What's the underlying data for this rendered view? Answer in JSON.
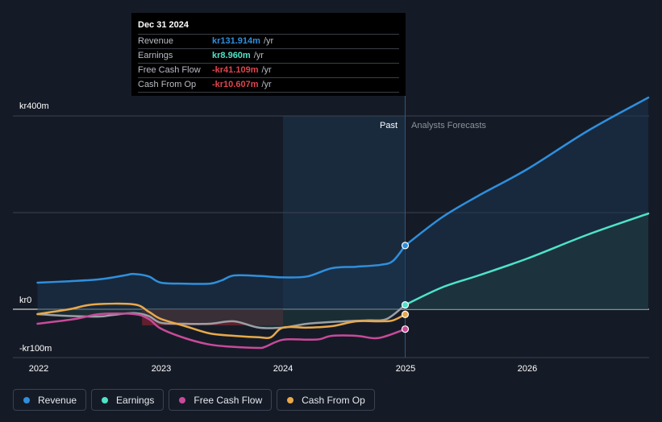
{
  "chart_data": {
    "type": "line",
    "y_unit_prefix": "kr",
    "ylim": [
      -100,
      400
    ],
    "xlim": [
      2021.8,
      2026.99
    ],
    "y_axis_labels": [
      {
        "value": 400,
        "label": "kr400m"
      },
      {
        "value": 0,
        "label": "kr0"
      },
      {
        "value": -100,
        "label": "-kr100m"
      }
    ],
    "x_tick_labels": [
      {
        "value": 2022,
        "label": "2022"
      },
      {
        "value": 2023,
        "label": "2023"
      },
      {
        "value": 2024,
        "label": "2024"
      },
      {
        "value": 2025,
        "label": "2025"
      },
      {
        "value": 2026,
        "label": "2026"
      }
    ],
    "gridlines_y": [
      400,
      200,
      0,
      -100
    ],
    "highlight_range": [
      2024,
      2025
    ],
    "divider_x": 2025,
    "past_label": "Past",
    "forecast_label": "Analysts Forecasts",
    "series": [
      {
        "name": "Revenue",
        "color": "#2f8fdd",
        "points": [
          [
            2021.99,
            55
          ],
          [
            2022.25,
            58
          ],
          [
            2022.5,
            62
          ],
          [
            2022.7,
            70
          ],
          [
            2022.78,
            73
          ],
          [
            2022.9,
            68
          ],
          [
            2023.0,
            55
          ],
          [
            2023.2,
            53
          ],
          [
            2023.4,
            53
          ],
          [
            2023.5,
            60
          ],
          [
            2023.6,
            70
          ],
          [
            2023.8,
            69
          ],
          [
            2024.0,
            66
          ],
          [
            2024.2,
            68
          ],
          [
            2024.4,
            85
          ],
          [
            2024.6,
            88
          ],
          [
            2024.8,
            92
          ],
          [
            2024.9,
            100
          ],
          [
            2025.0,
            131.914
          ],
          [
            2025.3,
            190
          ],
          [
            2025.6,
            235
          ],
          [
            2026.0,
            290
          ],
          [
            2026.5,
            370
          ],
          [
            2026.99,
            438
          ]
        ],
        "highlight": {
          "x": 2025.0,
          "y": 131.914
        },
        "forecast_from": 2025.0
      },
      {
        "name": "Earnings",
        "color": "#4fe3c9",
        "points": [
          [
            2021.99,
            -10
          ],
          [
            2022.25,
            -14
          ],
          [
            2022.5,
            -15
          ],
          [
            2022.6,
            -12
          ],
          [
            2022.78,
            -8
          ],
          [
            2022.9,
            -14
          ],
          [
            2023.0,
            -28
          ],
          [
            2023.2,
            -30
          ],
          [
            2023.4,
            -30
          ],
          [
            2023.6,
            -25
          ],
          [
            2023.8,
            -38
          ],
          [
            2024.0,
            -38
          ],
          [
            2024.2,
            -30
          ],
          [
            2024.5,
            -25
          ],
          [
            2024.7,
            -23
          ],
          [
            2024.85,
            -20
          ],
          [
            2025.0,
            8.96
          ],
          [
            2025.3,
            45
          ],
          [
            2025.6,
            70
          ],
          [
            2026.0,
            105
          ],
          [
            2026.5,
            155
          ],
          [
            2026.99,
            198
          ]
        ],
        "highlight": {
          "x": 2025.0,
          "y": 8.96
        },
        "forecast_from": 2025.0
      },
      {
        "name": "Free Cash Flow",
        "color": "#c94a9a",
        "points": [
          [
            2021.99,
            -30
          ],
          [
            2022.3,
            -20
          ],
          [
            2022.5,
            -10
          ],
          [
            2022.78,
            -10
          ],
          [
            2022.9,
            -20
          ],
          [
            2023.0,
            -40
          ],
          [
            2023.2,
            -60
          ],
          [
            2023.4,
            -73
          ],
          [
            2023.6,
            -78
          ],
          [
            2023.8,
            -80
          ],
          [
            2023.85,
            -78
          ],
          [
            2024.0,
            -63
          ],
          [
            2024.2,
            -63
          ],
          [
            2024.3,
            -62
          ],
          [
            2024.4,
            -55
          ],
          [
            2024.6,
            -55
          ],
          [
            2024.75,
            -60
          ],
          [
            2024.85,
            -55
          ],
          [
            2025.0,
            -41.109
          ]
        ],
        "highlight": {
          "x": 2025.0,
          "y": -41.109
        },
        "forecast_from": null
      },
      {
        "name": "Cash From Op",
        "color": "#e9a94a",
        "points": [
          [
            2021.99,
            -10
          ],
          [
            2022.25,
            0
          ],
          [
            2022.45,
            10
          ],
          [
            2022.78,
            10
          ],
          [
            2022.9,
            -5
          ],
          [
            2023.0,
            -20
          ],
          [
            2023.2,
            -35
          ],
          [
            2023.4,
            -50
          ],
          [
            2023.6,
            -55
          ],
          [
            2023.8,
            -58
          ],
          [
            2023.9,
            -58
          ],
          [
            2024.0,
            -38
          ],
          [
            2024.2,
            -38
          ],
          [
            2024.4,
            -35
          ],
          [
            2024.6,
            -25
          ],
          [
            2024.8,
            -25
          ],
          [
            2024.9,
            -23
          ],
          [
            2025.0,
            -10.607
          ]
        ],
        "highlight": {
          "x": 2025.0,
          "y": -10.607
        },
        "forecast_from": null
      }
    ]
  },
  "tooltip": {
    "date": "Dec 31 2024",
    "rows": [
      {
        "label": "Revenue",
        "value": "kr131.914m",
        "unit": "/yr",
        "color": "#2f8fdd"
      },
      {
        "label": "Earnings",
        "value": "kr8.960m",
        "unit": "/yr",
        "color": "#4fe3c9"
      },
      {
        "label": "Free Cash Flow",
        "value": "-kr41.109m",
        "unit": "/yr",
        "color": "#e0454e"
      },
      {
        "label": "Cash From Op",
        "value": "-kr10.607m",
        "unit": "/yr",
        "color": "#e0454e"
      }
    ]
  },
  "legend": [
    {
      "label": "Revenue",
      "color": "#2f8fdd"
    },
    {
      "label": "Earnings",
      "color": "#4fe3c9"
    },
    {
      "label": "Free Cash Flow",
      "color": "#c94a9a"
    },
    {
      "label": "Cash From Op",
      "color": "#e9a94a"
    }
  ]
}
